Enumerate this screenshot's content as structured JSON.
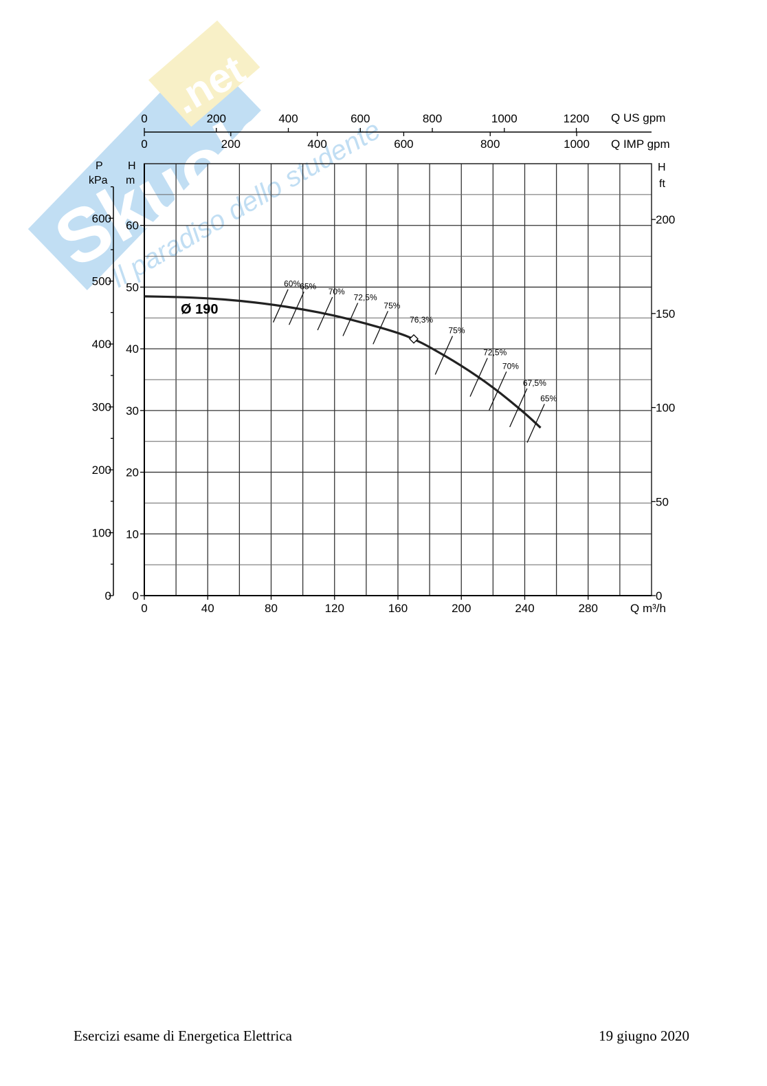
{
  "watermark": {
    "brand_a": "Skuola",
    "brand_b": ".net",
    "tagline": "Il paradiso dello studente",
    "colors": {
      "blue": "#8fc4ea",
      "yellow": "#f4e49a"
    }
  },
  "footer": {
    "left": "Esercizi esame di Energetica Elettrica",
    "right": "19 giugno 2020"
  },
  "chart_data": {
    "type": "line",
    "x": {
      "label": "Q m³/h",
      "range": [
        0,
        320
      ],
      "ticks": [
        0,
        40,
        80,
        120,
        160,
        200,
        240,
        280
      ]
    },
    "x_top_us": {
      "label": "Q US gpm",
      "ticks": [
        0,
        200,
        400,
        600,
        800,
        1000,
        1200
      ]
    },
    "x_top_imp": {
      "label": "Q IMP gpm",
      "ticks": [
        0,
        200,
        400,
        600,
        800,
        1000
      ]
    },
    "y_left_p": {
      "label_line1": "P",
      "label_line2": "kPa",
      "ticks": [
        0,
        100,
        200,
        300,
        400,
        500,
        600
      ]
    },
    "y_left_h": {
      "label_line1": "H",
      "label_line2": "m",
      "range": [
        0,
        70
      ],
      "ticks": [
        0,
        10,
        20,
        30,
        40,
        50,
        60
      ]
    },
    "y_right_ft": {
      "label_line1": "H",
      "label_line2": "ft",
      "ticks": [
        0,
        50,
        100,
        150,
        200
      ]
    },
    "grid": true,
    "series": [
      {
        "name": "Ø 190",
        "x": [
          0,
          20,
          40,
          60,
          80,
          100,
          120,
          140,
          160,
          170,
          180,
          200,
          220,
          240,
          250
        ],
        "y": [
          48.5,
          48.4,
          48.2,
          47.8,
          47.2,
          46.4,
          45.4,
          44.1,
          42.6,
          41.6,
          40.3,
          37.3,
          33.8,
          29.6,
          27.2
        ]
      }
    ],
    "best_efficiency_point": {
      "x": 170,
      "y": 41.6,
      "label": "76,3%"
    },
    "efficiency_marks": [
      {
        "label": "60%",
        "x": 86
      },
      {
        "label": "65%",
        "x": 96
      },
      {
        "label": "70%",
        "x": 114
      },
      {
        "label": "72,5%",
        "x": 130
      },
      {
        "label": "75%",
        "x": 149
      },
      {
        "label": "75%",
        "x": 189
      },
      {
        "label": "72,5%",
        "x": 211
      },
      {
        "label": "70%",
        "x": 223
      },
      {
        "label": "67,5%",
        "x": 236
      },
      {
        "label": "65%",
        "x": 247
      }
    ]
  }
}
